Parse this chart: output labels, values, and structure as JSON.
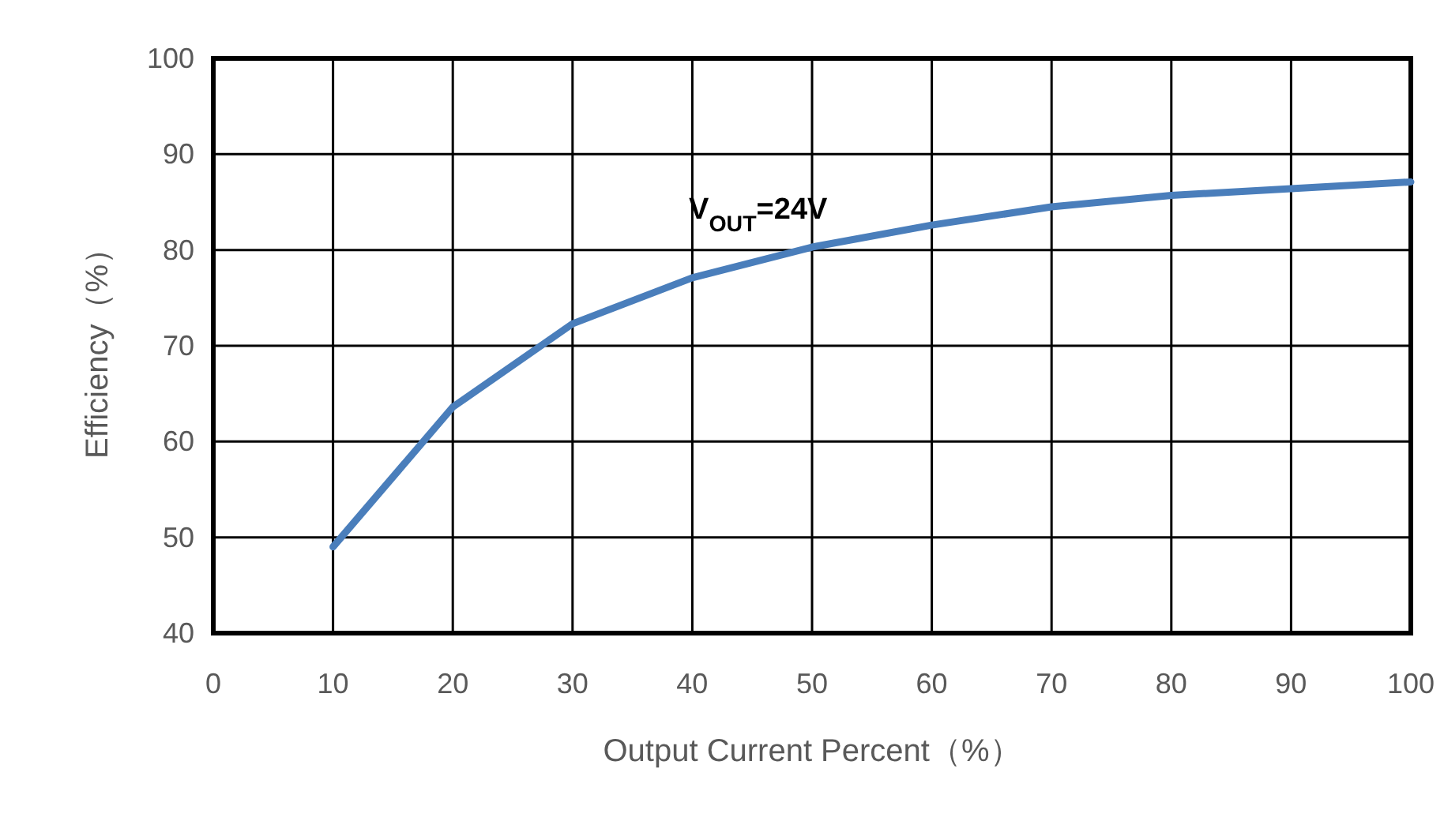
{
  "chart_data": {
    "type": "line",
    "xlabel": "Output Current Percent（%）",
    "ylabel": "Efficiency（%）",
    "x": [
      10,
      20,
      30,
      40,
      50,
      60,
      70,
      80,
      90,
      100
    ],
    "series": [
      {
        "name": "V$_{OUT}$=24V",
        "color": "#4a7ebb",
        "values": [
          49,
          63.6,
          72.3,
          77.1,
          80.3,
          82.6,
          84.5,
          85.7,
          86.4,
          87.1
        ]
      }
    ],
    "xlim": [
      0,
      100
    ],
    "ylim": [
      40,
      100
    ],
    "xticks": [
      0,
      10,
      20,
      30,
      40,
      50,
      60,
      70,
      80,
      90,
      100
    ],
    "yticks": [
      40,
      50,
      60,
      70,
      80,
      90,
      100
    ],
    "grid": true,
    "line_style": "solid"
  }
}
